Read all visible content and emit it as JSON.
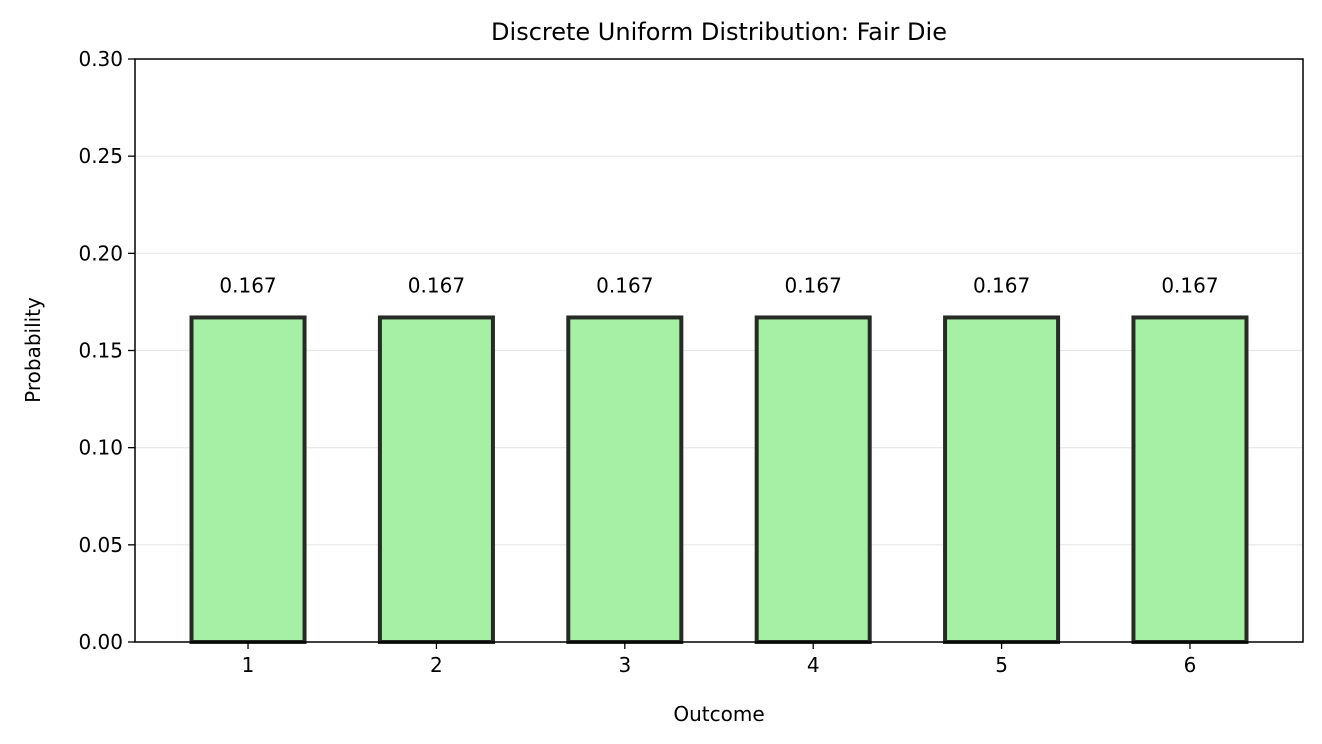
{
  "chart_data": {
    "type": "bar",
    "title": "Discrete Uniform Distribution: Fair Die",
    "xlabel": "Outcome",
    "ylabel": "Probability",
    "categories": [
      "1",
      "2",
      "3",
      "4",
      "5",
      "6"
    ],
    "values": [
      0.167,
      0.167,
      0.167,
      0.167,
      0.167,
      0.167
    ],
    "data_labels": [
      "0.167",
      "0.167",
      "0.167",
      "0.167",
      "0.167",
      "0.167"
    ],
    "ylim": [
      0,
      0.3
    ],
    "yticks": [
      0.0,
      0.05,
      0.1,
      0.15,
      0.2,
      0.25,
      0.3
    ],
    "ytick_labels": [
      "0.00",
      "0.05",
      "0.10",
      "0.15",
      "0.20",
      "0.25",
      "0.30"
    ],
    "grid": "y",
    "colors": {
      "bar_fill": "#a6f0a6",
      "bar_edge": "#262b26",
      "grid": "#e6e6e6",
      "axes": "#000000"
    }
  }
}
